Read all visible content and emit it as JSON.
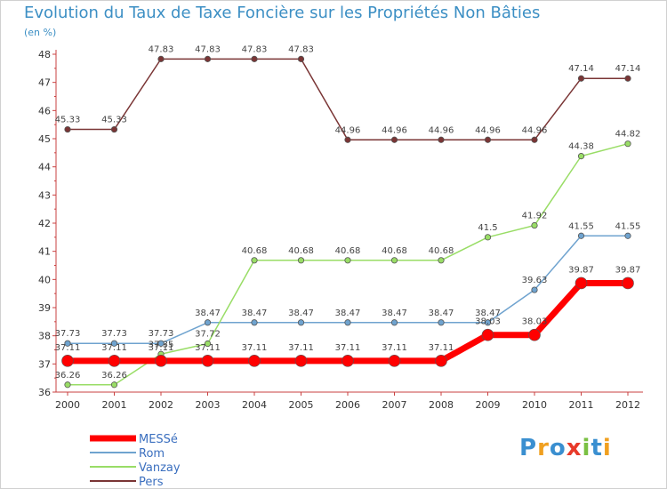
{
  "chart_data": {
    "type": "line",
    "title": "Evolution du Taux de Taxe Foncière sur les Propriétés Non Bâties",
    "ylabel": "(en %)",
    "xlabel": "",
    "categories": [
      "2000",
      "2001",
      "2002",
      "2003",
      "2004",
      "2005",
      "2006",
      "2007",
      "2008",
      "2009",
      "2010",
      "2011",
      "2012"
    ],
    "ylim": [
      36,
      48
    ],
    "yticks": [
      36,
      37,
      38,
      39,
      40,
      41,
      42,
      43,
      44,
      45,
      46,
      47,
      48
    ],
    "grid": false,
    "legend": "bottom-left",
    "series": [
      {
        "name": "MESSé",
        "color": "#ff0000",
        "emphasis": true,
        "values": [
          37.11,
          37.11,
          37.11,
          37.11,
          37.11,
          37.11,
          37.11,
          37.11,
          37.11,
          38.03,
          38.03,
          39.87,
          39.87
        ],
        "labels": [
          "37.11",
          "37.11",
          "37.11",
          "37.11",
          "37.11",
          "37.11",
          "37.11",
          "37.11",
          "37.11",
          "38.03",
          "38.03",
          "39.87",
          "39.87"
        ]
      },
      {
        "name": "Rom",
        "color": "#6fa3cf",
        "emphasis": false,
        "values": [
          37.73,
          37.73,
          37.73,
          38.47,
          38.47,
          38.47,
          38.47,
          38.47,
          38.47,
          38.47,
          39.63,
          41.55,
          41.55
        ],
        "labels": [
          "37.73",
          "37.73",
          "37.73",
          "38.47",
          "38.47",
          "38.47",
          "38.47",
          "38.47",
          "38.47",
          "38.47",
          "39.63",
          "41.55",
          "41.55"
        ]
      },
      {
        "name": "Vanzay",
        "color": "#99dd66",
        "emphasis": false,
        "values": [
          36.26,
          36.26,
          37.35,
          37.72,
          40.68,
          40.68,
          40.68,
          40.68,
          40.68,
          41.5,
          41.92,
          44.38,
          44.82
        ],
        "labels": [
          "36.26",
          "36.26",
          "37.35",
          "37.72",
          "40.68",
          "40.68",
          "40.68",
          "40.68",
          "40.68",
          "41.5",
          "41.92",
          "44.38",
          "44.82"
        ]
      },
      {
        "name": "Pers",
        "color": "#7a3535",
        "emphasis": false,
        "values": [
          45.33,
          45.33,
          47.83,
          47.83,
          47.83,
          47.83,
          44.96,
          44.96,
          44.96,
          44.96,
          44.96,
          47.14,
          47.14
        ],
        "labels": [
          "45.33",
          "45.33",
          "47.83",
          "47.83",
          "47.83",
          "47.83",
          "44.96",
          "44.96",
          "44.96",
          "44.96",
          "44.96",
          "47.14",
          "47.14"
        ]
      }
    ]
  },
  "logo": {
    "letters": [
      "P",
      "r",
      "o",
      "x",
      "i",
      "t",
      "i"
    ],
    "colors": [
      "#3a8fd0",
      "#f0a020",
      "#3a8fd0",
      "#e83a2a",
      "#7ac043",
      "#3a8fd0",
      "#f0a020"
    ],
    "alt_text": "Proxiti"
  }
}
